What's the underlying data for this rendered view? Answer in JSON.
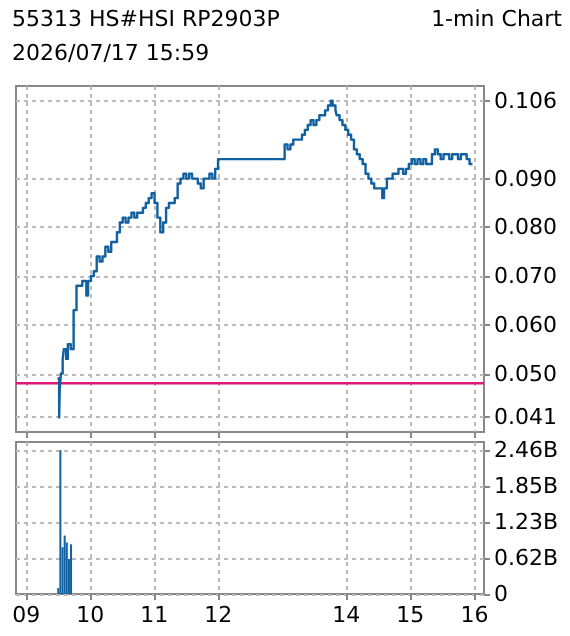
{
  "chart_data": [
    {
      "type": "step",
      "title": "55313 HS#HSI  RP2903P",
      "subtitle": "2026/07/17 15:59",
      "annotations": [
        "1-min Chart"
      ],
      "x": [
        9.487,
        9.514,
        9.523,
        9.542,
        9.569,
        9.587,
        9.623,
        9.65,
        9.695,
        9.74,
        9.785,
        9.83,
        9.875,
        9.939,
        9.966,
        10.011,
        10.056,
        10.101,
        10.146,
        10.191,
        10.236,
        10.282,
        10.327,
        10.372,
        10.417,
        10.462,
        10.507,
        10.552,
        10.597,
        10.643,
        10.688,
        10.733,
        10.778,
        10.823,
        10.868,
        10.913,
        10.958,
        11.004,
        11.049,
        11.094,
        11.139,
        11.184,
        11.229,
        11.274,
        11.319,
        11.365,
        11.41,
        11.455,
        11.5,
        11.545,
        11.59,
        11.635,
        11.68,
        11.726,
        11.771,
        11.816,
        11.861,
        11.906,
        11.951,
        11.996,
        13.036,
        13.081,
        13.126,
        13.171,
        13.217,
        13.262,
        13.307,
        13.352,
        13.397,
        13.442,
        13.487,
        13.532,
        13.578,
        13.623,
        13.668,
        13.713,
        13.758,
        13.785,
        13.83,
        13.848,
        13.894,
        13.939,
        13.984,
        14.029,
        14.074,
        14.119,
        14.164,
        14.209,
        14.255,
        14.3,
        14.345,
        14.39,
        14.435,
        14.48,
        14.525,
        14.561,
        14.588,
        14.633,
        14.678,
        14.723,
        14.769,
        14.814,
        14.886,
        14.931,
        14.976,
        15.022,
        15.067,
        15.112,
        15.157,
        15.202,
        15.247,
        15.292,
        15.337,
        15.383,
        15.428,
        15.473,
        15.518,
        15.563,
        15.608,
        15.653,
        15.698,
        15.744,
        15.789,
        15.834,
        15.879,
        15.924,
        15.969
      ],
      "series": [
        {
          "color": "#11609f",
          "values": [
            0.049,
            0.041,
            0.047,
            0.05,
            0.053,
            0.055,
            0.053,
            0.056,
            0.055,
            0.063,
            0.068,
            0.068,
            0.069,
            0.066,
            0.069,
            0.07,
            0.071,
            0.074,
            0.073,
            0.074,
            0.076,
            0.075,
            0.077,
            0.077,
            0.079,
            0.081,
            0.082,
            0.081,
            0.082,
            0.083,
            0.082,
            0.083,
            0.083,
            0.084,
            0.085,
            0.086,
            0.087,
            0.085,
            0.082,
            0.079,
            0.081,
            0.084,
            0.085,
            0.085,
            0.086,
            0.089,
            0.09,
            0.091,
            0.09,
            0.091,
            0.09,
            0.09,
            0.089,
            0.088,
            0.09,
            0.09,
            0.091,
            0.09,
            0.092,
            0.094,
            0.097,
            0.096,
            0.097,
            0.098,
            0.098,
            0.098,
            0.099,
            0.1,
            0.101,
            0.102,
            0.101,
            0.102,
            0.103,
            0.103,
            0.104,
            0.105,
            0.106,
            0.105,
            0.104,
            0.103,
            0.102,
            0.101,
            0.1,
            0.099,
            0.098,
            0.096,
            0.095,
            0.094,
            0.093,
            0.091,
            0.09,
            0.089,
            0.088,
            0.088,
            0.088,
            0.086,
            0.088,
            0.09,
            0.09,
            0.091,
            0.091,
            0.092,
            0.091,
            0.092,
            0.093,
            0.094,
            0.093,
            0.094,
            0.093,
            0.094,
            0.093,
            0.093,
            0.095,
            0.096,
            0.095,
            0.094,
            0.095,
            0.095,
            0.094,
            0.095,
            0.095,
            0.094,
            0.095,
            0.095,
            0.094,
            0.093,
            0.093
          ]
        }
      ],
      "xlim": [
        8.84,
        16.15
      ],
      "xticks": [
        {
          "value": 9,
          "label": null
        },
        {
          "value": 10,
          "label": null
        },
        {
          "value": 11,
          "label": null
        },
        {
          "value": 12,
          "label": null
        },
        {
          "value": 14,
          "label": null
        },
        {
          "value": 15,
          "label": null
        },
        {
          "value": 16,
          "label": null
        }
      ],
      "ylim": [
        0.038,
        0.109
      ],
      "yticks": [
        0.041,
        {
          "value": 0.05,
          "label": "0.050"
        },
        {
          "value": 0.06,
          "label": "0.060"
        },
        {
          "value": 0.07,
          "label": "0.070"
        },
        {
          "value": 0.08,
          "label": "0.080"
        },
        {
          "value": 0.09,
          "label": "0.090"
        },
        0.106
      ],
      "ref_lines": [
        {
          "axis": "y",
          "value": 0.048,
          "color": "#e0187a"
        }
      ],
      "grid": true,
      "marker": "none",
      "tick_labels": "y"
    },
    {
      "type": "bar",
      "x": [
        9.5,
        9.533,
        9.567,
        9.6,
        9.633,
        9.667,
        9.7
      ],
      "series": [
        {
          "color": "#11609f",
          "values": [
            0.1,
            2.46,
            0.8,
            1.0,
            0.88,
            0.6,
            0.85
          ]
        }
      ],
      "xlim": [
        8.84,
        16.15
      ],
      "xticks": [
        {
          "value": 9,
          "label": "09"
        },
        10,
        11,
        12,
        14,
        15,
        16
      ],
      "ylim": [
        0,
        2.6
      ],
      "yticks": [
        0,
        {
          "value": 0.62,
          "label": "0.62B"
        },
        {
          "value": 1.23,
          "label": "1.23B"
        },
        {
          "value": 1.85,
          "label": "1.85B"
        },
        {
          "value": 2.46,
          "label": "2.46B"
        }
      ],
      "grid": true
    }
  ]
}
